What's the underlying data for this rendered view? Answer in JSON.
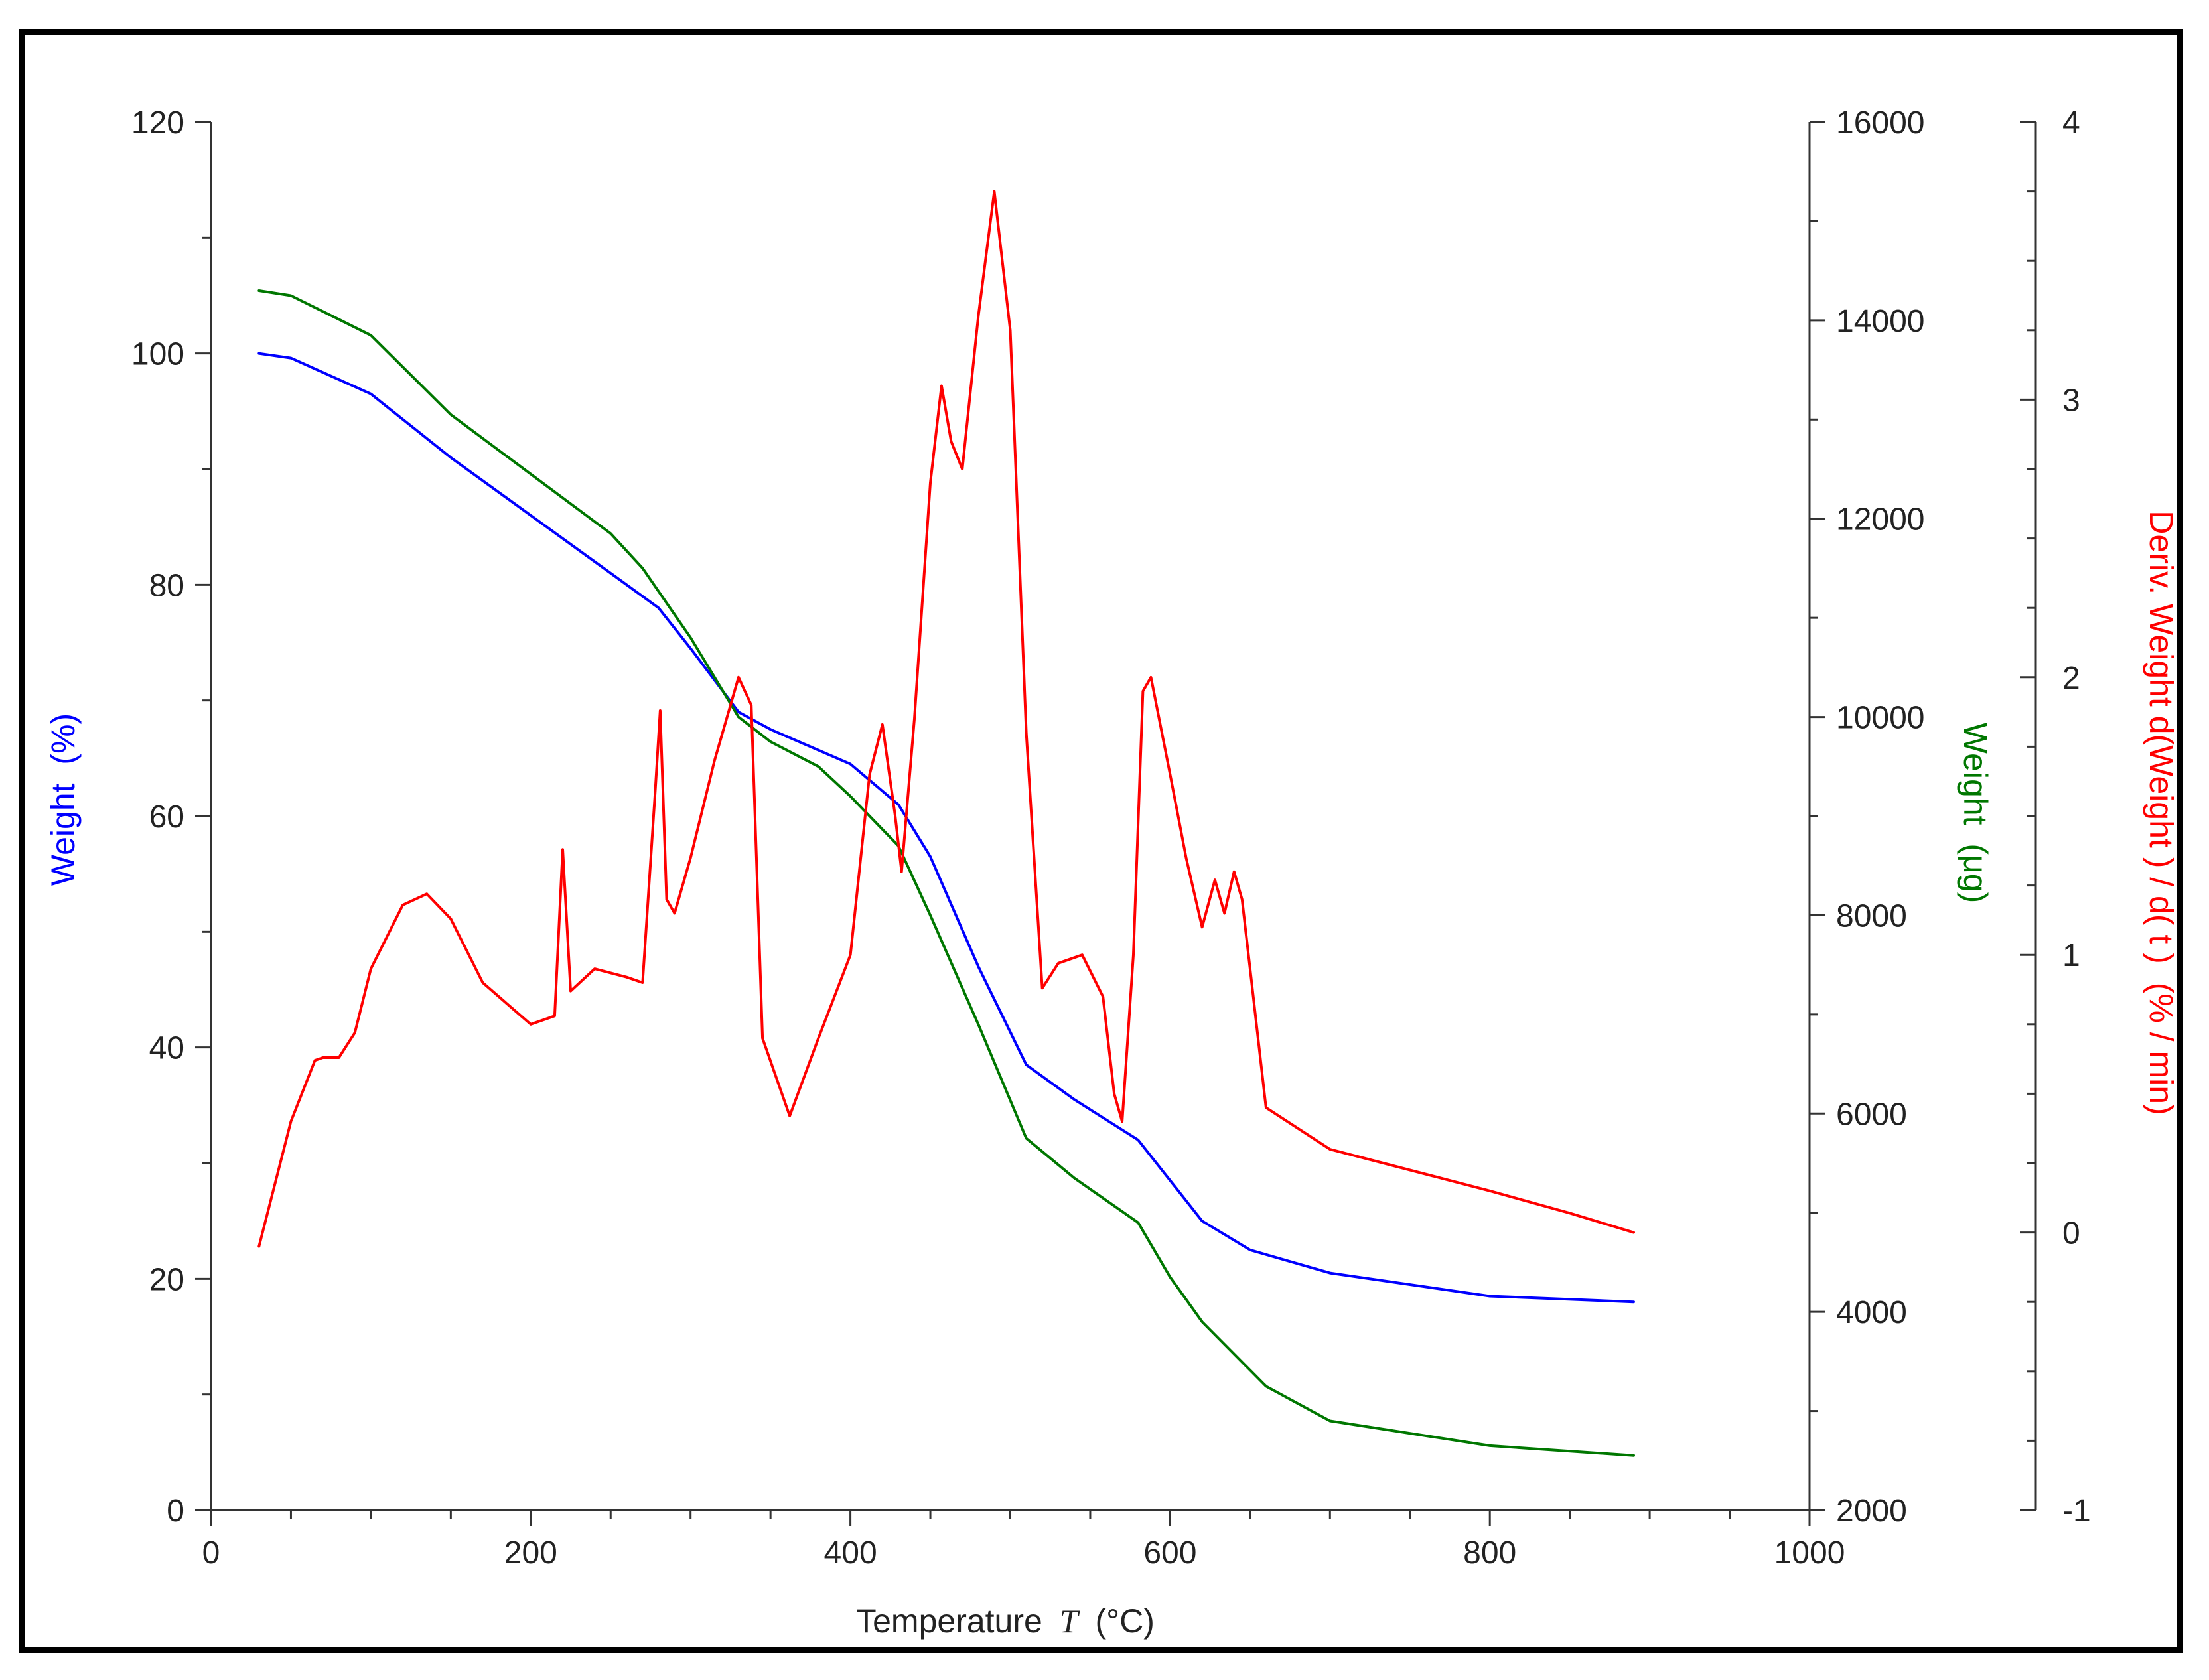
{
  "chart_data": {
    "type": "line",
    "title": "",
    "xlabel": "Temperature",
    "xlabel_symbol": "T",
    "xlabel_unit": "(°C)",
    "xlim": [
      0,
      1000
    ],
    "x_ticks": [
      0,
      200,
      400,
      600,
      800,
      1000
    ],
    "axes": {
      "left": {
        "label": "Weight",
        "unit": "(%)",
        "color": "#0000ff",
        "ylim": [
          0,
          120
        ],
        "ticks": [
          0,
          20,
          40,
          60,
          80,
          100,
          120
        ]
      },
      "right1": {
        "label": "Weight",
        "unit": "(μg)",
        "color": "#007700",
        "ylim": [
          2000,
          16000
        ],
        "ticks": [
          2000,
          4000,
          6000,
          8000,
          10000,
          12000,
          14000,
          16000
        ]
      },
      "right2": {
        "label": "Deriv. Weight d(Weight ) / d( t )",
        "unit": "(% / min)",
        "color": "#ff0000",
        "ylim": [
          -1,
          4
        ],
        "ticks": [
          -1,
          0,
          1,
          2,
          3,
          4
        ]
      }
    },
    "series": [
      {
        "name": "Weight (%)",
        "axis": "left",
        "color": "#0000ff",
        "x": [
          30,
          50,
          100,
          150,
          200,
          250,
          280,
          300,
          330,
          350,
          400,
          430,
          450,
          480,
          510,
          540,
          580,
          620,
          650,
          700,
          800,
          890
        ],
        "y": [
          100,
          99.6,
          96.5,
          91,
          86,
          81,
          78,
          74.5,
          69,
          67.5,
          64.5,
          61,
          56.5,
          47,
          38.5,
          35.5,
          32,
          25,
          22.5,
          20.5,
          18.5,
          18
        ]
      },
      {
        "name": "Weight (μg)",
        "axis": "right1",
        "color": "#007700",
        "x": [
          30,
          50,
          100,
          150,
          200,
          250,
          270,
          300,
          330,
          350,
          380,
          400,
          430,
          450,
          480,
          510,
          540,
          580,
          600,
          620,
          660,
          700,
          800,
          890
        ],
        "y": [
          14300,
          14250,
          13850,
          13050,
          12450,
          11850,
          11500,
          10800,
          10000,
          9750,
          9500,
          9200,
          8700,
          8000,
          6900,
          5750,
          5350,
          4900,
          4350,
          3900,
          3250,
          2900,
          2650,
          2550
        ]
      },
      {
        "name": "Deriv. Weight (% / min)",
        "axis": "right2",
        "color": "#ff0000",
        "x": [
          30,
          50,
          65,
          70,
          80,
          90,
          100,
          120,
          135,
          150,
          170,
          200,
          215,
          220,
          225,
          240,
          260,
          270,
          278,
          281,
          285,
          290,
          300,
          315,
          330,
          338,
          345,
          362,
          380,
          400,
          412,
          420,
          428,
          432,
          440,
          450,
          457,
          463,
          470,
          480,
          490,
          500,
          510,
          520,
          530,
          545,
          558,
          565,
          570,
          577,
          583,
          588,
          600,
          610,
          620,
          628,
          634,
          640,
          645,
          650,
          660,
          700,
          800,
          850,
          890
        ],
        "y": [
          -0.05,
          0.4,
          0.62,
          0.63,
          0.63,
          0.72,
          0.95,
          1.18,
          1.22,
          1.13,
          0.9,
          0.75,
          0.78,
          1.38,
          0.87,
          0.95,
          0.92,
          0.9,
          1.6,
          1.88,
          1.2,
          1.15,
          1.35,
          1.7,
          2.0,
          1.9,
          0.7,
          0.42,
          0.7,
          1.0,
          1.65,
          1.83,
          1.5,
          1.3,
          1.85,
          2.7,
          3.05,
          2.85,
          2.75,
          3.3,
          3.75,
          3.25,
          1.8,
          0.88,
          0.97,
          1.0,
          0.85,
          0.5,
          0.4,
          1.0,
          1.95,
          2.0,
          1.65,
          1.35,
          1.1,
          1.27,
          1.15,
          1.3,
          1.2,
          0.95,
          0.45,
          0.3,
          0.15,
          0.07,
          0.0
        ]
      }
    ]
  }
}
